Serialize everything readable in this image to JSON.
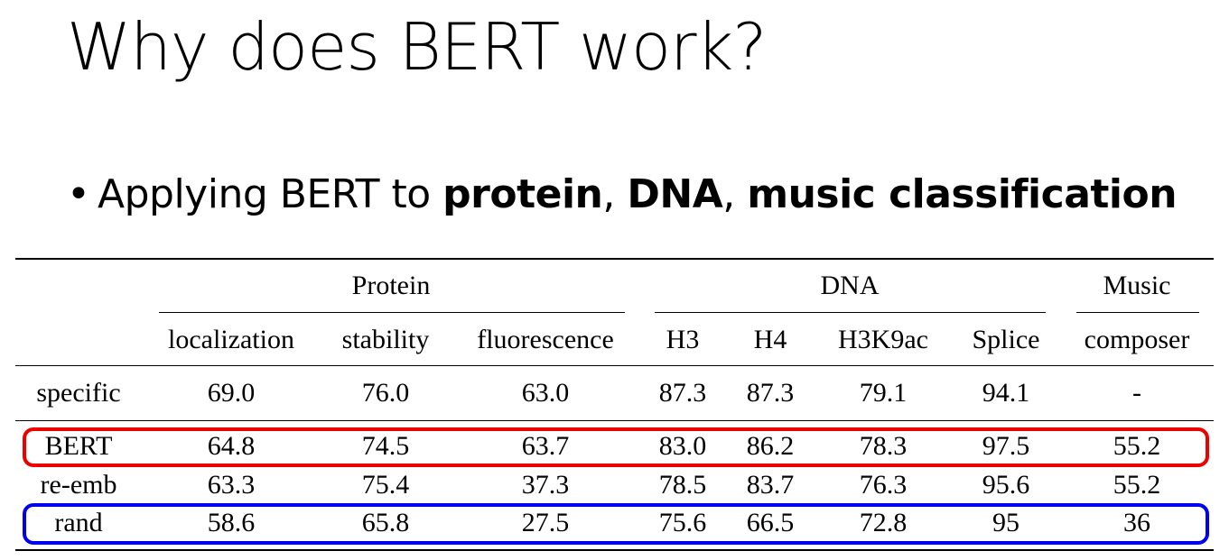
{
  "slide": {
    "title": "Why does BERT work?",
    "bullet": {
      "prefix": "Applying BERT to ",
      "term1": "protein",
      "sep1": ", ",
      "term2": "DNA",
      "sep2": ", ",
      "term3": "music classification"
    }
  },
  "table": {
    "groups": [
      {
        "label": "Protein"
      },
      {
        "label": "DNA"
      },
      {
        "label": "Music"
      }
    ],
    "columns": [
      "localization",
      "stability",
      "fluorescence",
      "H3",
      "H4",
      "H3K9ac",
      "Splice",
      "composer"
    ],
    "rows": [
      {
        "label": "specific",
        "values": [
          "69.0",
          "76.0",
          "63.0",
          "87.3",
          "87.3",
          "79.1",
          "94.1",
          "-"
        ]
      },
      {
        "label": "BERT",
        "values": [
          "64.8",
          "74.5",
          "63.7",
          "83.0",
          "86.2",
          "78.3",
          "97.5",
          "55.2"
        ]
      },
      {
        "label": "re-emb",
        "values": [
          "63.3",
          "75.4",
          "37.3",
          "78.5",
          "83.7",
          "76.3",
          "95.6",
          "55.2"
        ]
      },
      {
        "label": "rand",
        "values": [
          "58.6",
          "65.8",
          "27.5",
          "75.6",
          "66.5",
          "72.8",
          "95",
          "36"
        ]
      }
    ]
  },
  "highlights": {
    "bert_row_color": "#ee0000",
    "rand_row_color": "#0000ee"
  }
}
